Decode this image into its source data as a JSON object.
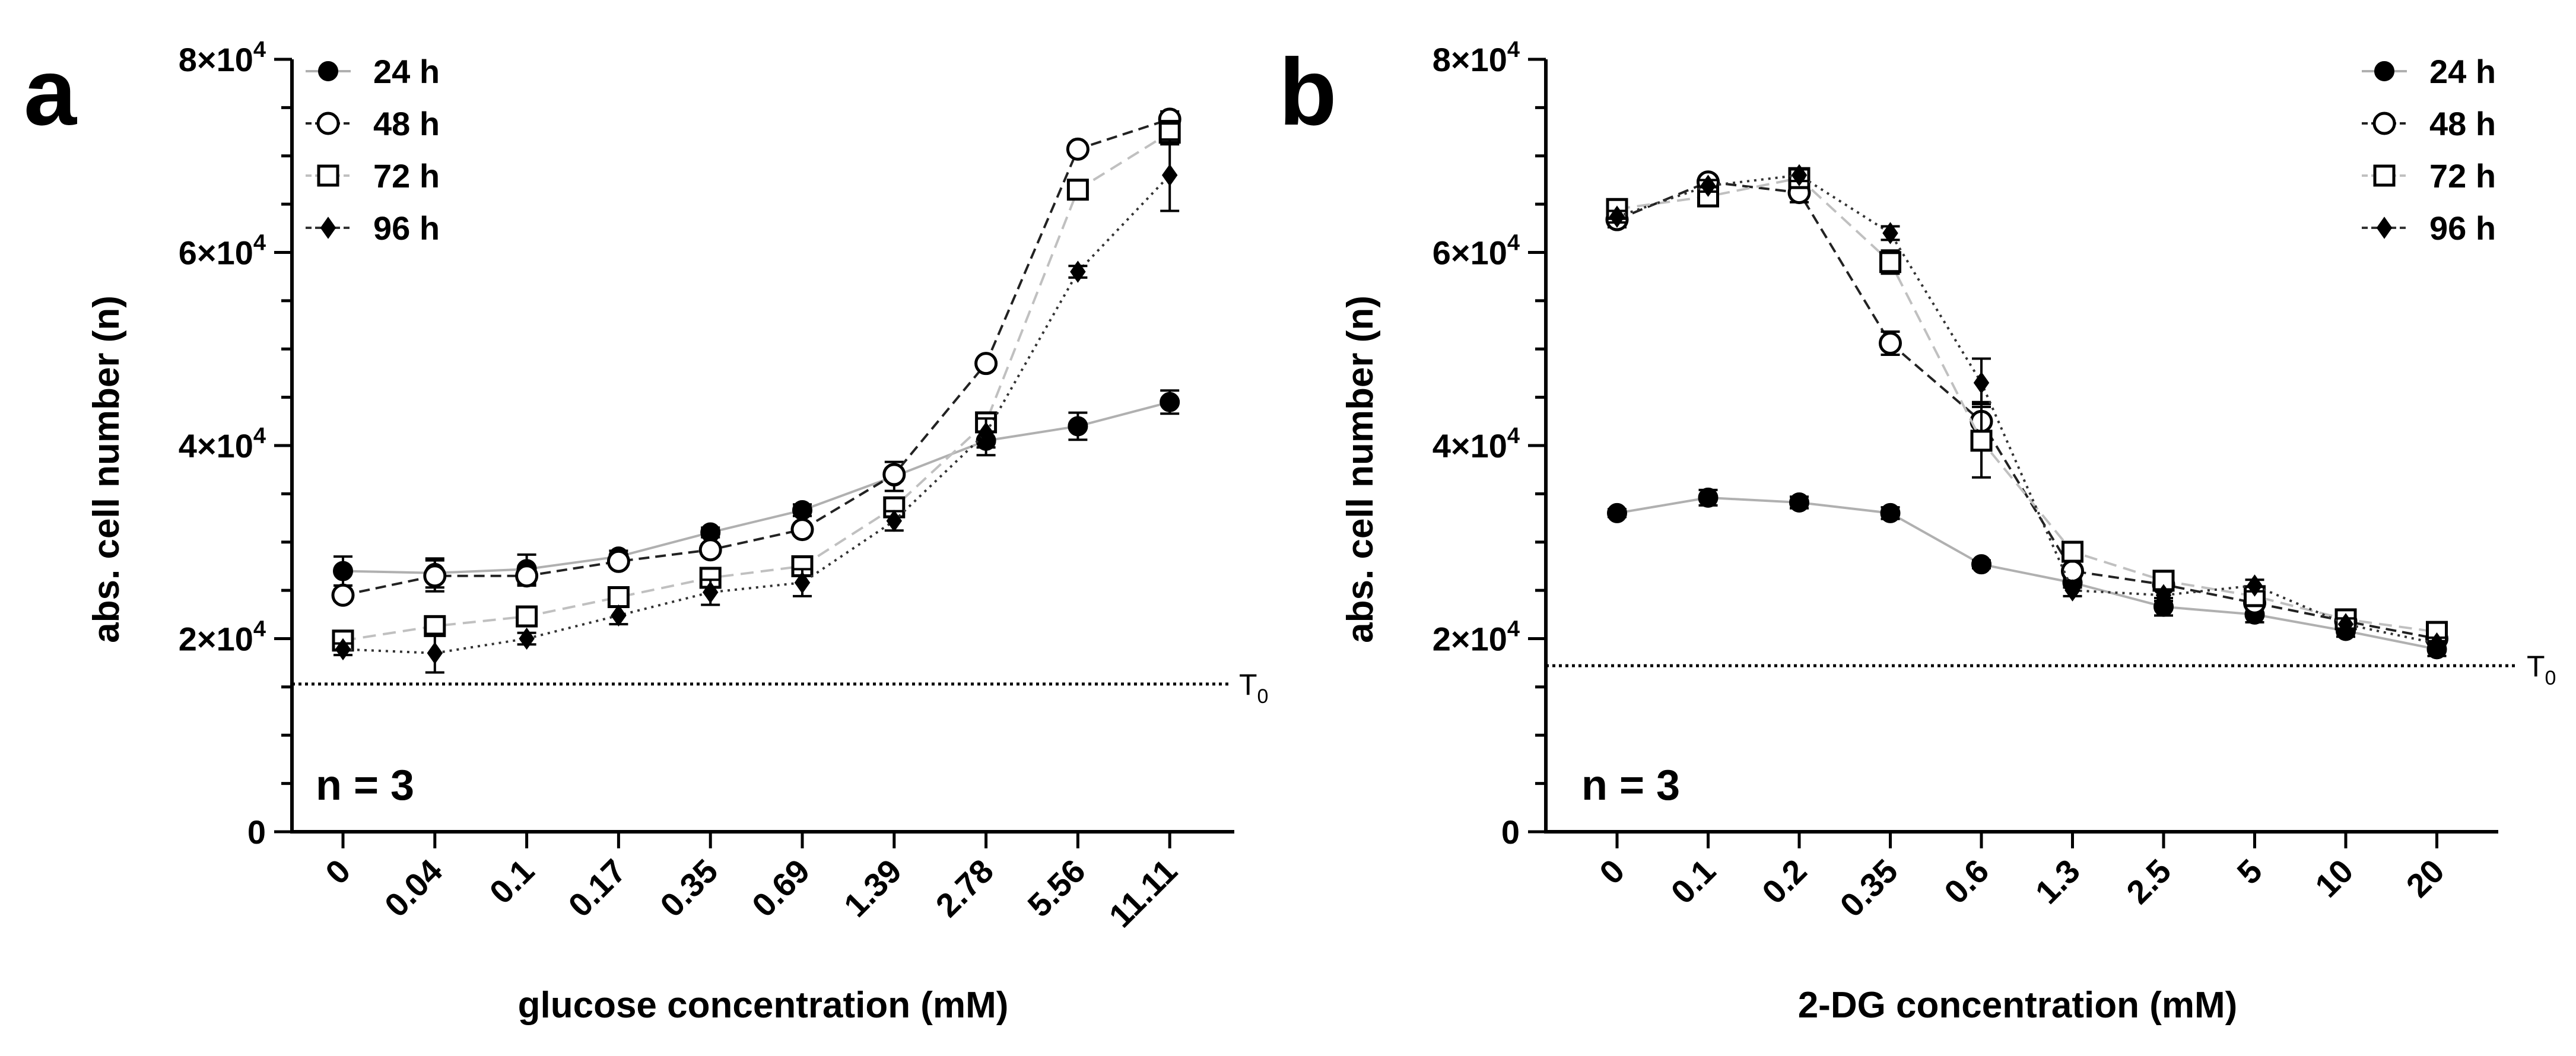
{
  "chart_data": [
    {
      "type": "line",
      "panel": "a",
      "title": "",
      "xlabel": "glucose concentration (mM)",
      "ylabel": "abs. cell number (n)",
      "categories": [
        "0",
        "0.04",
        "0.1",
        "0.17",
        "0.35",
        "0.69",
        "1.39",
        "2.78",
        "5.56",
        "11.11"
      ],
      "ylim": [
        0,
        80000
      ],
      "y_ticks": [
        {
          "value": 0,
          "base": "0",
          "exp": ""
        },
        {
          "value": 20000,
          "base": "2×10",
          "exp": "4"
        },
        {
          "value": 40000,
          "base": "4×10",
          "exp": "4"
        },
        {
          "value": 60000,
          "base": "6×10",
          "exp": "4"
        },
        {
          "value": 80000,
          "base": "8×10",
          "exp": "4"
        }
      ],
      "legend_position": "top-left",
      "annotation": "n = 3",
      "baseline": {
        "label": "T",
        "subscript": "0",
        "value": 15300
      },
      "series": [
        {
          "name": "24 h",
          "marker": "filled-circle",
          "color": "#b0b0b0",
          "dash": "",
          "values": [
            27000,
            26800,
            27200,
            28500,
            31000,
            33300,
            36800,
            40500,
            42000,
            44500
          ],
          "errors": [
            1500,
            1500,
            1500,
            600,
            500,
            600,
            1500,
            1500,
            1400,
            1200
          ]
        },
        {
          "name": "48 h",
          "marker": "open-circle",
          "color": "#222222",
          "dash": "18 10",
          "values": [
            24500,
            26500,
            26500,
            28000,
            29200,
            31300,
            37000,
            48500,
            70700,
            73800
          ],
          "errors": [
            600,
            1600,
            1000,
            500,
            600,
            600,
            600,
            500,
            600,
            800
          ]
        },
        {
          "name": "72 h",
          "marker": "open-square",
          "color": "#c0c0c0",
          "dash": "22 12",
          "values": [
            19800,
            21300,
            22300,
            24300,
            26300,
            27500,
            33600,
            42400,
            66500,
            72400
          ],
          "errors": [
            600,
            600,
            800,
            600,
            700,
            800,
            800,
            800,
            800,
            1200
          ]
        },
        {
          "name": "96 h",
          "marker": "filled-diamond",
          "color": "#333333",
          "dash": "4 8",
          "values": [
            18900,
            18500,
            20000,
            22400,
            24800,
            25800,
            32200,
            41300,
            58000,
            68000
          ],
          "errors": [
            600,
            2000,
            600,
            900,
            1300,
            1400,
            1000,
            1500,
            600,
            3700
          ]
        }
      ]
    },
    {
      "type": "line",
      "panel": "b",
      "title": "",
      "xlabel": "2-DG concentration (mM)",
      "ylabel": "abs. cell number (n)",
      "categories": [
        "0",
        "0.1",
        "0.2",
        "0.35",
        "0.6",
        "1.3",
        "2.5",
        "5",
        "10",
        "20"
      ],
      "ylim": [
        0,
        80000
      ],
      "y_ticks": [
        {
          "value": 0,
          "base": "0",
          "exp": ""
        },
        {
          "value": 20000,
          "base": "2×10",
          "exp": "4"
        },
        {
          "value": 40000,
          "base": "4×10",
          "exp": "4"
        },
        {
          "value": 60000,
          "base": "6×10",
          "exp": "4"
        },
        {
          "value": 80000,
          "base": "8×10",
          "exp": "4"
        }
      ],
      "legend_position": "top-right",
      "annotation": "n = 3",
      "baseline": {
        "label": "T",
        "subscript": "0",
        "value": 17200
      },
      "series": [
        {
          "name": "24 h",
          "marker": "filled-circle",
          "color": "#b0b0b0",
          "dash": "",
          "values": [
            33000,
            34600,
            34100,
            33000,
            27700,
            25800,
            23300,
            22500,
            20800,
            18900
          ],
          "errors": [
            400,
            800,
            600,
            600,
            400,
            500,
            900,
            800,
            600,
            700
          ]
        },
        {
          "name": "48 h",
          "marker": "open-circle",
          "color": "#222222",
          "dash": "18 10",
          "values": [
            63400,
            67300,
            66200,
            50600,
            42500,
            27000,
            25600,
            23700,
            21800,
            20000
          ],
          "errors": [
            800,
            600,
            1000,
            1200,
            2000,
            600,
            600,
            600,
            600,
            600
          ]
        },
        {
          "name": "72 h",
          "marker": "open-square",
          "color": "#c0c0c0",
          "dash": "22 12",
          "values": [
            64500,
            65800,
            67700,
            59000,
            40500,
            29000,
            26000,
            24400,
            22000,
            20700
          ],
          "errors": [
            800,
            600,
            700,
            1200,
            3800,
            800,
            800,
            800,
            600,
            800
          ]
        },
        {
          "name": "96 h",
          "marker": "filled-diamond",
          "color": "#333333",
          "dash": "4 8",
          "values": [
            63700,
            66900,
            68000,
            62000,
            46500,
            25000,
            24500,
            25500,
            21500,
            19500
          ],
          "errors": [
            600,
            600,
            600,
            700,
            2500,
            600,
            600,
            600,
            600,
            600
          ]
        }
      ]
    }
  ]
}
